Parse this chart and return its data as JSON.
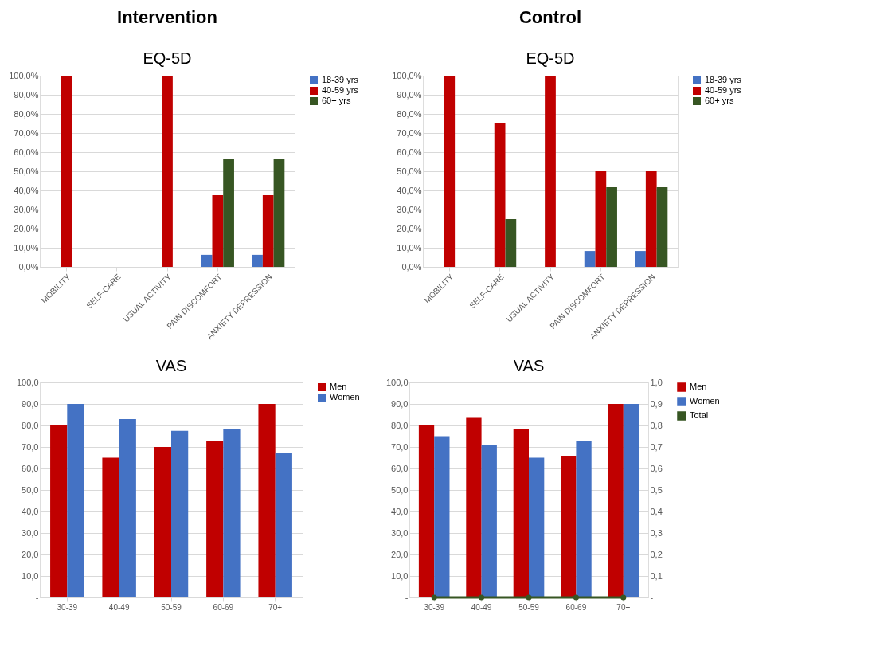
{
  "chart_data": [
    {
      "type": "bar",
      "title": "Intervention",
      "subtitle": "EQ-5D",
      "categories": [
        "MOBILITY",
        "SELF-CARE",
        "USUAL ACTIVITY",
        "PAIN DISCOMFORT",
        "ANXIETY DEPRESSION"
      ],
      "series": [
        {
          "name": "18-39 yrs",
          "color": "#4472c4",
          "values": [
            0,
            0,
            0,
            6.3,
            6.3
          ]
        },
        {
          "name": "40-59 yrs",
          "color": "#c00000",
          "values": [
            100,
            0,
            100,
            37.5,
            37.5
          ]
        },
        {
          "name": "60+ yrs",
          "color": "#375623",
          "values": [
            0,
            0,
            0,
            56.3,
            56.3
          ]
        }
      ],
      "ylim": [
        0,
        100
      ],
      "yticks": [
        {
          "value": 0,
          "label": "0,0%"
        },
        {
          "value": 10,
          "label": "10,0%"
        },
        {
          "value": 20,
          "label": "20,0%"
        },
        {
          "value": 30,
          "label": "30,0%"
        },
        {
          "value": 40,
          "label": "40,0%"
        },
        {
          "value": 50,
          "label": "50,0%"
        },
        {
          "value": 60,
          "label": "60,0%"
        },
        {
          "value": 70,
          "label": "70,0%"
        },
        {
          "value": 80,
          "label": "80,0%"
        },
        {
          "value": 90,
          "label": "90,0%"
        },
        {
          "value": 100,
          "label": "100,0%"
        }
      ],
      "grid": "y",
      "legend": "right"
    },
    {
      "type": "bar",
      "title": "Control",
      "subtitle": "EQ-5D",
      "categories": [
        "MOBILITY",
        "SELF-CARE",
        "USUAL ACTIVITY",
        "PAIN DISCOMFORT",
        "ANXIETY DEPRESSION"
      ],
      "series": [
        {
          "name": "18-39 yrs",
          "color": "#4472c4",
          "values": [
            0,
            0,
            0,
            8.3,
            8.3
          ]
        },
        {
          "name": "40-59 yrs",
          "color": "#c00000",
          "values": [
            100,
            75,
            100,
            50,
            50
          ]
        },
        {
          "name": "60+ yrs",
          "color": "#375623",
          "values": [
            0,
            25,
            0,
            41.7,
            41.7
          ]
        }
      ],
      "ylim": [
        0,
        100
      ],
      "yticks": [
        {
          "value": 0,
          "label": "0,0%"
        },
        {
          "value": 10,
          "label": "10,0%"
        },
        {
          "value": 20,
          "label": "20,0%"
        },
        {
          "value": 30,
          "label": "30,0%"
        },
        {
          "value": 40,
          "label": "40,0%"
        },
        {
          "value": 50,
          "label": "50,0%"
        },
        {
          "value": 60,
          "label": "60,0%"
        },
        {
          "value": 70,
          "label": "70,0%"
        },
        {
          "value": 80,
          "label": "80,0%"
        },
        {
          "value": 90,
          "label": "90,0%"
        },
        {
          "value": 100,
          "label": "100,0%"
        }
      ],
      "grid": "y",
      "legend": "right"
    },
    {
      "type": "bar",
      "title": "VAS",
      "categories": [
        "30-39",
        "40-49",
        "50-59",
        "60-69",
        "70+"
      ],
      "series": [
        {
          "name": "Men",
          "color": "#c00000",
          "values": [
            80,
            65,
            70,
            73,
            90
          ]
        },
        {
          "name": "Women",
          "color": "#4472c4",
          "values": [
            90,
            83,
            77.5,
            78.3,
            67
          ]
        }
      ],
      "ylim": [
        0,
        100
      ],
      "yticks": [
        {
          "value": 0,
          "label": "-"
        },
        {
          "value": 10,
          "label": "10,0"
        },
        {
          "value": 20,
          "label": "20,0"
        },
        {
          "value": 30,
          "label": "30,0"
        },
        {
          "value": 40,
          "label": "40,0"
        },
        {
          "value": 50,
          "label": "50,0"
        },
        {
          "value": 60,
          "label": "60,0"
        },
        {
          "value": 70,
          "label": "70,0"
        },
        {
          "value": 80,
          "label": "80,0"
        },
        {
          "value": 90,
          "label": "90,0"
        },
        {
          "value": 100,
          "label": "100,0"
        }
      ],
      "grid": "y",
      "legend": "right"
    },
    {
      "type": "bar",
      "title": "VAS",
      "categories": [
        "30-39",
        "40-49",
        "50-59",
        "60-69",
        "70+"
      ],
      "series": [
        {
          "name": "Men",
          "color": "#c00000",
          "values": [
            80,
            83.5,
            78.5,
            65.8,
            90
          ]
        },
        {
          "name": "Women",
          "color": "#4472c4",
          "values": [
            75,
            71,
            65,
            73,
            90
          ]
        },
        {
          "name": "Total",
          "color": "#375623",
          "type": "line",
          "axis": "y2",
          "marker": "circle",
          "values": [
            0,
            0,
            0,
            0,
            0
          ]
        }
      ],
      "ylim": [
        0,
        100
      ],
      "yticks": [
        {
          "value": 0,
          "label": "-"
        },
        {
          "value": 10,
          "label": "10,0"
        },
        {
          "value": 20,
          "label": "20,0"
        },
        {
          "value": 30,
          "label": "30,0"
        },
        {
          "value": 40,
          "label": "40,0"
        },
        {
          "value": 50,
          "label": "50,0"
        },
        {
          "value": 60,
          "label": "60,0"
        },
        {
          "value": 70,
          "label": "70,0"
        },
        {
          "value": 80,
          "label": "80,0"
        },
        {
          "value": 90,
          "label": "90,0"
        },
        {
          "value": 100,
          "label": "100,0"
        }
      ],
      "y2lim": [
        0,
        1
      ],
      "y2ticks": [
        {
          "value": 0,
          "label": "-"
        },
        {
          "value": 0.1,
          "label": "0,1"
        },
        {
          "value": 0.2,
          "label": "0,2"
        },
        {
          "value": 0.3,
          "label": "0,3"
        },
        {
          "value": 0.4,
          "label": "0,4"
        },
        {
          "value": 0.5,
          "label": "0,5"
        },
        {
          "value": 0.6,
          "label": "0,6"
        },
        {
          "value": 0.7,
          "label": "0,7"
        },
        {
          "value": 0.8,
          "label": "0,8"
        },
        {
          "value": 0.9,
          "label": "0,9"
        },
        {
          "value": 1,
          "label": "1,0"
        }
      ],
      "grid": "y",
      "legend": "right"
    }
  ]
}
